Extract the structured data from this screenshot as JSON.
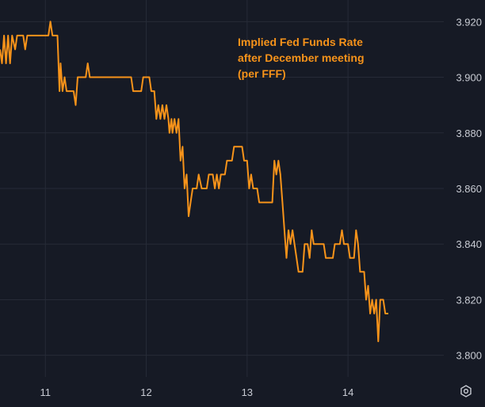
{
  "chart_data": {
    "type": "line",
    "title_lines": [
      "Implied Fed Funds Rate",
      "after December meeting",
      "(per FFF)"
    ],
    "xlabel": "",
    "ylabel": "",
    "x_ticks": [
      "11",
      "12",
      "13",
      "14"
    ],
    "y_ticks": [
      "3.800",
      "3.820",
      "3.840",
      "3.860",
      "3.880",
      "3.900",
      "3.920"
    ],
    "xlim": [
      10.55,
      14.95
    ],
    "ylim": [
      3.7945,
      3.9255
    ],
    "grid": true,
    "line_color": "#f7931a",
    "series": [
      {
        "values": [
          [
            10.55,
            3.91
          ],
          [
            10.57,
            3.905
          ],
          [
            10.59,
            3.915
          ],
          [
            10.61,
            3.905
          ],
          [
            10.63,
            3.915
          ],
          [
            10.65,
            3.905
          ],
          [
            10.67,
            3.915
          ],
          [
            10.7,
            3.91
          ],
          [
            10.72,
            3.915
          ],
          [
            10.78,
            3.915
          ],
          [
            10.8,
            3.91
          ],
          [
            10.82,
            3.915
          ],
          [
            10.9,
            3.915
          ],
          [
            10.95,
            3.915
          ],
          [
            11.0,
            3.915
          ],
          [
            11.03,
            3.915
          ],
          [
            11.05,
            3.92
          ],
          [
            11.07,
            3.915
          ],
          [
            11.12,
            3.915
          ],
          [
            11.14,
            3.895
          ],
          [
            11.15,
            3.905
          ],
          [
            11.17,
            3.895
          ],
          [
            11.19,
            3.9
          ],
          [
            11.21,
            3.895
          ],
          [
            11.28,
            3.895
          ],
          [
            11.3,
            3.89
          ],
          [
            11.32,
            3.9
          ],
          [
            11.35,
            3.9
          ],
          [
            11.4,
            3.9
          ],
          [
            11.42,
            3.905
          ],
          [
            11.44,
            3.9
          ],
          [
            11.6,
            3.9
          ],
          [
            11.75,
            3.9
          ],
          [
            11.85,
            3.9
          ],
          [
            11.87,
            3.895
          ],
          [
            11.95,
            3.895
          ],
          [
            11.97,
            3.9
          ],
          [
            12.03,
            3.9
          ],
          [
            12.05,
            3.895
          ],
          [
            12.08,
            3.895
          ],
          [
            12.1,
            3.885
          ],
          [
            12.12,
            3.89
          ],
          [
            12.14,
            3.885
          ],
          [
            12.16,
            3.89
          ],
          [
            12.18,
            3.885
          ],
          [
            12.2,
            3.89
          ],
          [
            12.22,
            3.885
          ],
          [
            12.23,
            3.88
          ],
          [
            12.25,
            3.885
          ],
          [
            12.26,
            3.88
          ],
          [
            12.28,
            3.885
          ],
          [
            12.3,
            3.88
          ],
          [
            12.32,
            3.885
          ],
          [
            12.34,
            3.87
          ],
          [
            12.36,
            3.875
          ],
          [
            12.38,
            3.86
          ],
          [
            12.4,
            3.865
          ],
          [
            12.42,
            3.85
          ],
          [
            12.44,
            3.855
          ],
          [
            12.46,
            3.86
          ],
          [
            12.5,
            3.86
          ],
          [
            12.52,
            3.865
          ],
          [
            12.55,
            3.86
          ],
          [
            12.6,
            3.86
          ],
          [
            12.62,
            3.865
          ],
          [
            12.66,
            3.865
          ],
          [
            12.68,
            3.86
          ],
          [
            12.7,
            3.865
          ],
          [
            12.72,
            3.86
          ],
          [
            12.74,
            3.865
          ],
          [
            12.78,
            3.865
          ],
          [
            12.8,
            3.87
          ],
          [
            12.85,
            3.87
          ],
          [
            12.87,
            3.875
          ],
          [
            12.95,
            3.875
          ],
          [
            12.97,
            3.87
          ],
          [
            13.0,
            3.87
          ],
          [
            13.02,
            3.86
          ],
          [
            13.04,
            3.865
          ],
          [
            13.06,
            3.86
          ],
          [
            13.1,
            3.86
          ],
          [
            13.12,
            3.855
          ],
          [
            13.25,
            3.855
          ],
          [
            13.27,
            3.87
          ],
          [
            13.29,
            3.865
          ],
          [
            13.31,
            3.87
          ],
          [
            13.33,
            3.865
          ],
          [
            13.35,
            3.855
          ],
          [
            13.37,
            3.845
          ],
          [
            13.39,
            3.835
          ],
          [
            13.41,
            3.845
          ],
          [
            13.43,
            3.84
          ],
          [
            13.45,
            3.845
          ],
          [
            13.47,
            3.84
          ],
          [
            13.49,
            3.835
          ],
          [
            13.51,
            3.83
          ],
          [
            13.55,
            3.83
          ],
          [
            13.57,
            3.84
          ],
          [
            13.6,
            3.84
          ],
          [
            13.62,
            3.835
          ],
          [
            13.64,
            3.845
          ],
          [
            13.66,
            3.84
          ],
          [
            13.7,
            3.84
          ],
          [
            13.72,
            3.84
          ],
          [
            13.76,
            3.84
          ],
          [
            13.78,
            3.835
          ],
          [
            13.85,
            3.835
          ],
          [
            13.87,
            3.84
          ],
          [
            13.92,
            3.84
          ],
          [
            13.94,
            3.845
          ],
          [
            13.96,
            3.84
          ],
          [
            14.0,
            3.84
          ],
          [
            14.02,
            3.835
          ],
          [
            14.06,
            3.835
          ],
          [
            14.08,
            3.845
          ],
          [
            14.1,
            3.84
          ],
          [
            14.12,
            3.83
          ],
          [
            14.16,
            3.83
          ],
          [
            14.18,
            3.82
          ],
          [
            14.2,
            3.825
          ],
          [
            14.22,
            3.815
          ],
          [
            14.24,
            3.82
          ],
          [
            14.26,
            3.815
          ],
          [
            14.28,
            3.82
          ],
          [
            14.3,
            3.805
          ],
          [
            14.32,
            3.82
          ],
          [
            14.35,
            3.82
          ],
          [
            14.37,
            3.815
          ],
          [
            14.4,
            3.815
          ]
        ]
      }
    ]
  },
  "controls": {
    "settings_icon": "settings-icon"
  }
}
